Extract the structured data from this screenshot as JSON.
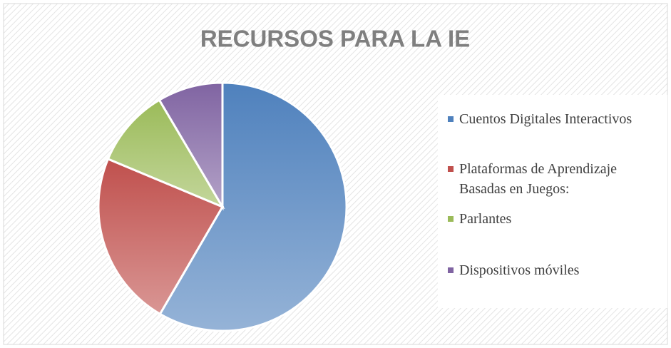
{
  "chart_data": {
    "type": "pie",
    "title": "RECURSOS PARA LA IE",
    "categories": [
      "Cuentos Digitales Interactivos",
      "Plataformas de Aprendizaje Basadas en Juegos:",
      "Parlantes",
      "Dispositivos móviles"
    ],
    "values": [
      58.4,
      22.9,
      10.2,
      8.5
    ],
    "colors": [
      "#4f81bd",
      "#c0504d",
      "#9bbb59",
      "#8064a2"
    ],
    "legend": "right"
  }
}
